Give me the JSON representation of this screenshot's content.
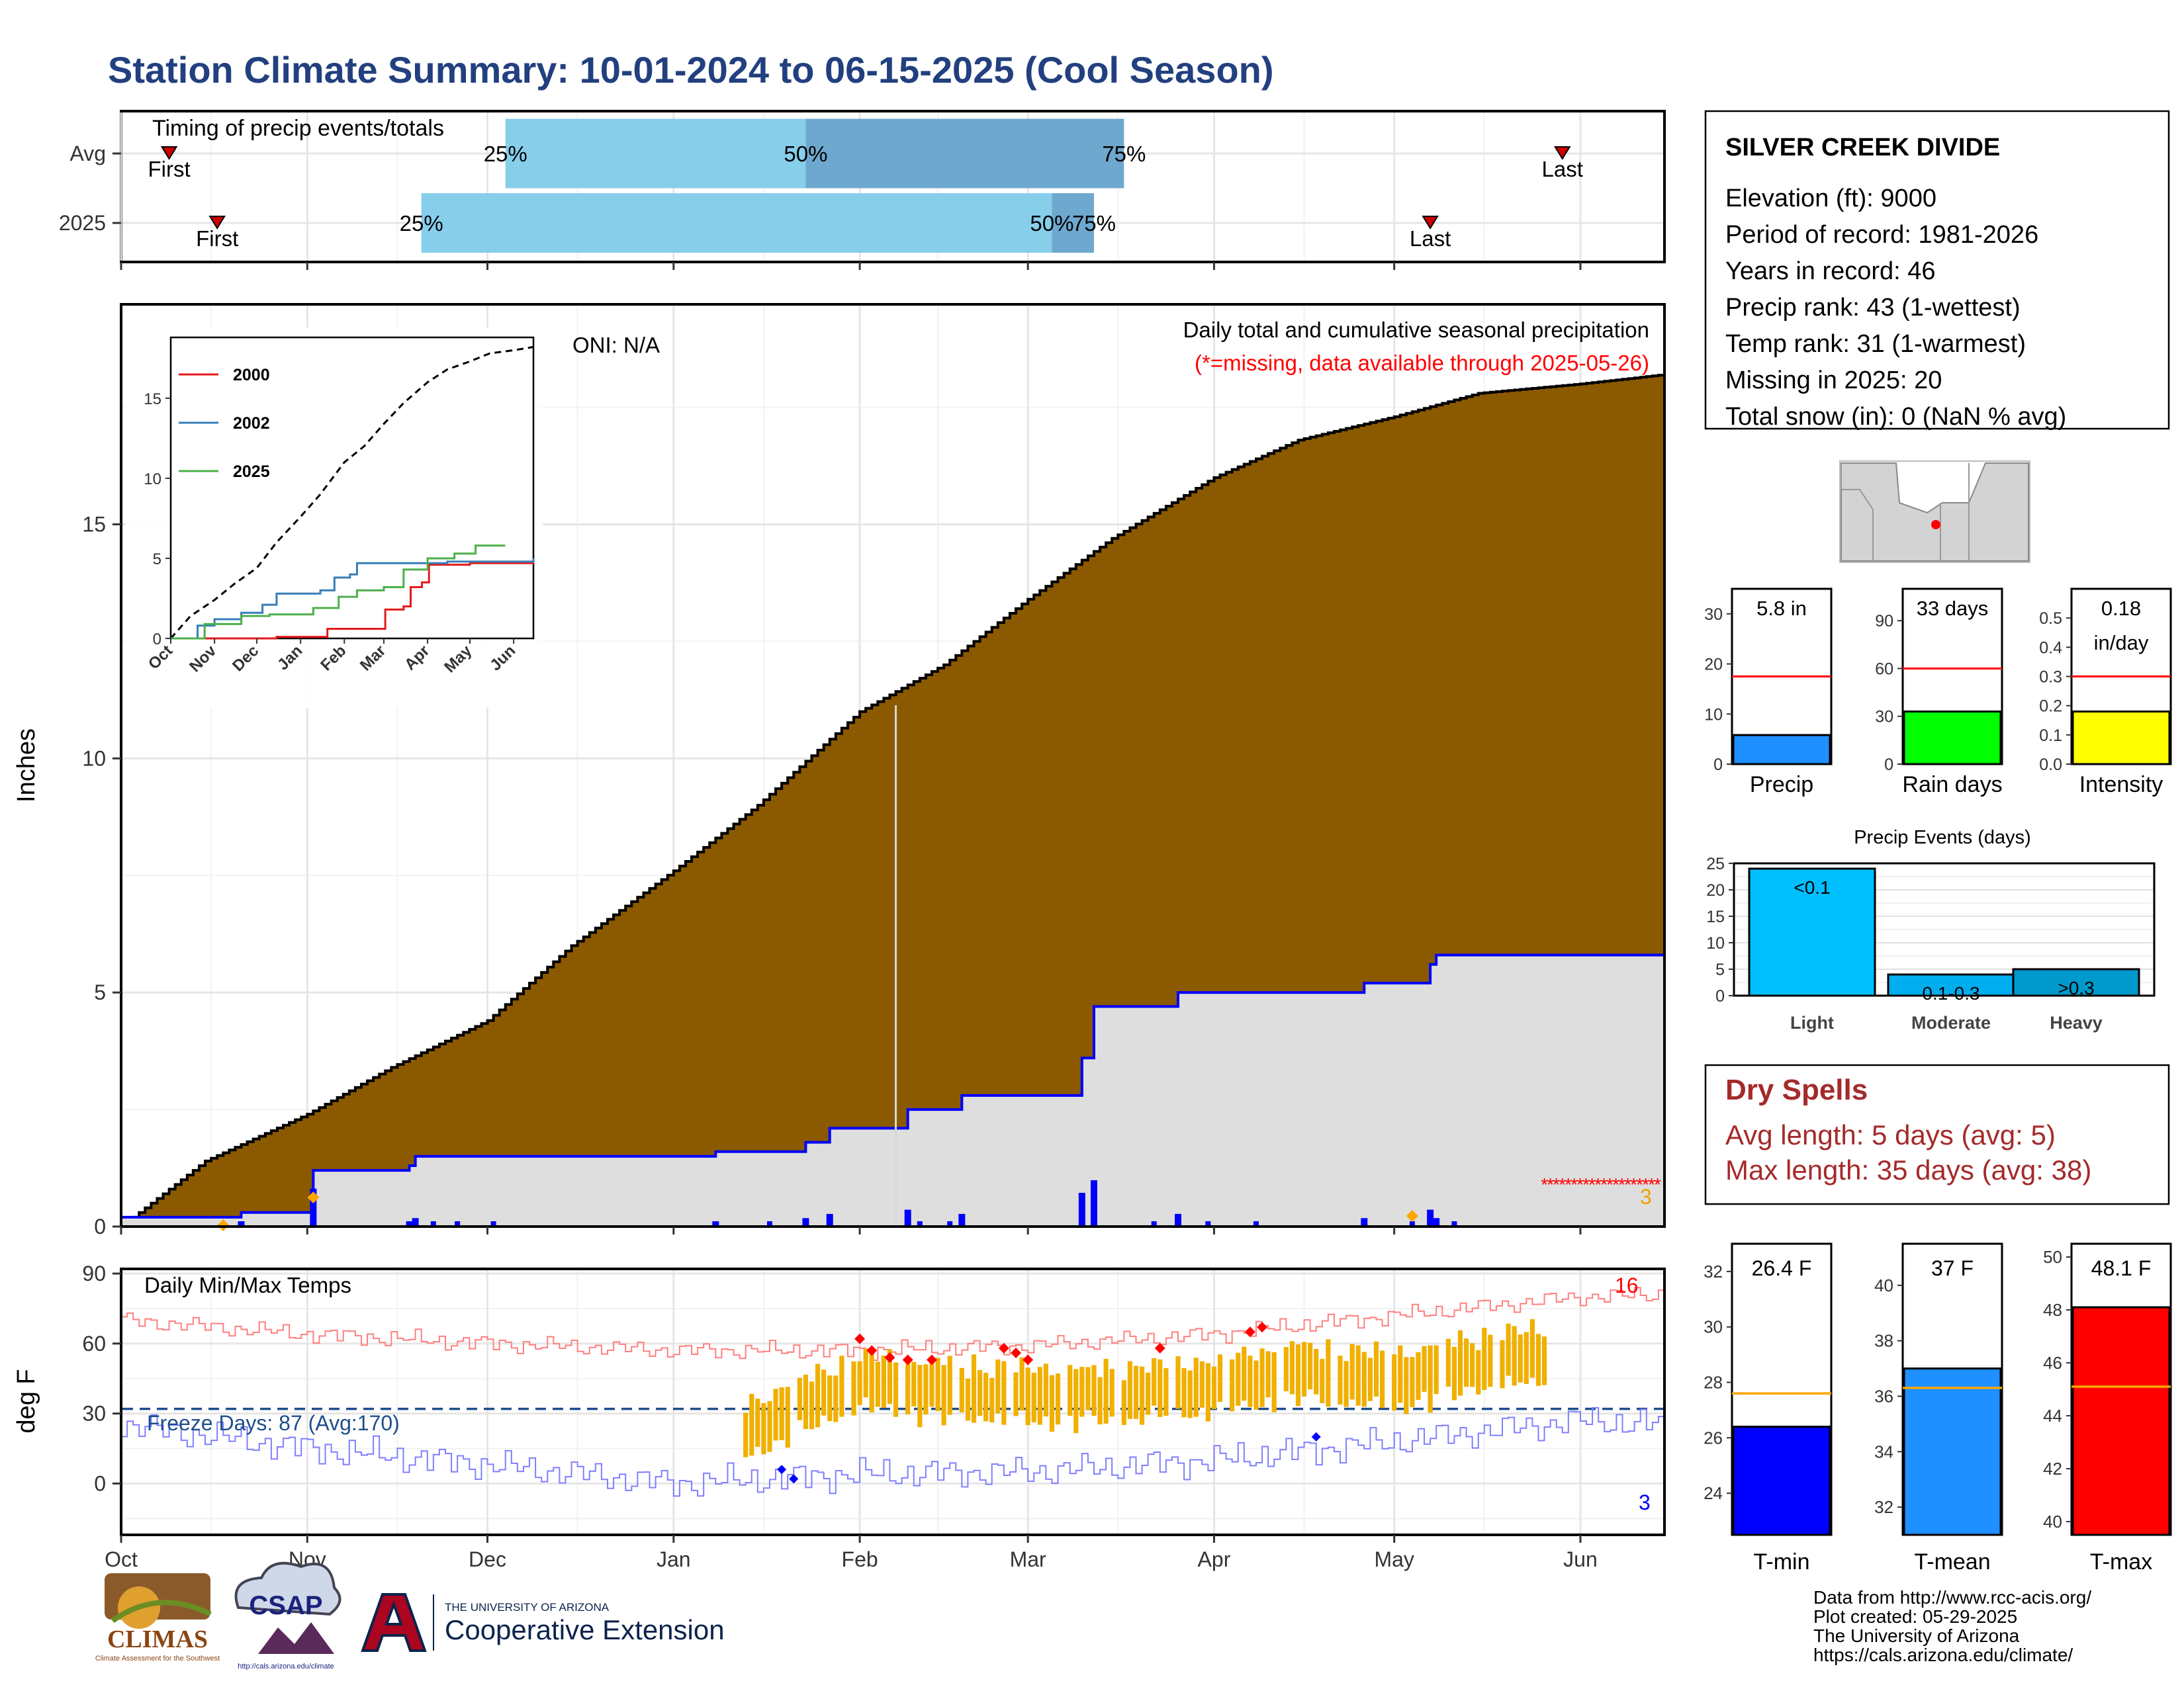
{
  "title": "Station Climate Summary: 10-01-2024 to 06-15-2025 (Cool Season)",
  "colors": {
    "title": "#22407f",
    "cum_avg_fill": "#8b5a00",
    "cum_2025_fill": "#dedede",
    "cum_2025_line": "#0000ff",
    "daily_bar": "#0000ff",
    "q_light": "#87ceeb",
    "q_dark": "#6fa8cf",
    "tmax_line": "#ff7f7f",
    "tmin_line": "#7f7fff",
    "temp_bar": "#f0b000",
    "dry_spell": "#a52a2a",
    "missing": "#ff0000",
    "freeze_line": "#1f4e8c"
  },
  "timing_panel": {
    "title": "Timing of precip events/totals",
    "rows": [
      {
        "label": "Avg",
        "first_label": "First",
        "first_date": "2024-10-09",
        "p25_label": "25%",
        "p25_date": "2024-12-04",
        "p50_label": "50%",
        "p50_date": "2025-01-23",
        "p75_label": "75%",
        "p75_date": "2025-03-17",
        "last_label": "Last",
        "last_date": "2025-05-29"
      },
      {
        "label": "2025",
        "first_label": "First",
        "first_date": "2024-10-17",
        "p25_label": "25%",
        "p25_date": "2024-11-20",
        "p50_label": "50%",
        "p50_date": "2025-03-05",
        "p75_label": "75%",
        "p75_date": "2025-03-12",
        "last_label": "Last",
        "last_date": "2025-05-07"
      }
    ]
  },
  "precip_panel": {
    "ylabel": "Inches",
    "label_right": "Daily total and cumulative seasonal precipitation",
    "missing_note": "(*=missing, data available through 2025-05-26)",
    "oni": "ONI: N/A",
    "missing_count": "3",
    "yticks": [
      "0",
      "5",
      "10",
      "15"
    ],
    "xticks": [
      "Oct",
      "Nov",
      "Dec",
      "Jan",
      "Feb",
      "Mar",
      "Apr",
      "May",
      "Jun"
    ]
  },
  "inset": {
    "yticks": [
      "0",
      "5",
      "10",
      "15"
    ],
    "xticks": [
      "Oct",
      "Nov",
      "Dec",
      "Jan",
      "Feb",
      "Mar",
      "Apr",
      "May",
      "Jun"
    ],
    "legend": [
      {
        "name": "2000",
        "color": "#e41a1c"
      },
      {
        "name": "2002",
        "color": "#377eb8"
      },
      {
        "name": "2025",
        "color": "#4daf4a"
      }
    ]
  },
  "temp_panel": {
    "ylabel": "deg F",
    "title": "Daily Min/Max Temps",
    "freeze_label": "Freeze Days: 87 (Avg:170)",
    "max_count": "16",
    "min_count": "3",
    "yticks": [
      "0",
      "30",
      "60",
      "90"
    ],
    "xticks": [
      "Oct",
      "Nov",
      "Dec",
      "Jan",
      "Feb",
      "Mar",
      "Apr",
      "May",
      "Jun"
    ]
  },
  "station": {
    "name": "SILVER CREEK DIVIDE",
    "lines": [
      "Elevation (ft): 9000",
      "Period of record: 1981-2026",
      "Years in record: 46",
      "Precip rank: 43 (1-wettest)",
      "Temp rank: 31 (1-warmest)",
      "Missing in 2025: 20",
      "Total snow (in): 0 (NaN % avg)"
    ]
  },
  "mini_bars": [
    {
      "label": "Precip",
      "value_text": "5.8 in",
      "value_text2": "",
      "value": 5.8,
      "avg": 17.5,
      "ymax": 35,
      "ticks": [
        "0",
        "10",
        "20",
        "30"
      ],
      "tickvals": [
        0,
        10,
        20,
        30
      ],
      "color": "#1e90ff"
    },
    {
      "label": "Rain days",
      "value_text": "33 days",
      "value_text2": "",
      "value": 33,
      "avg": 60,
      "ymax": 110,
      "ticks": [
        "0",
        "30",
        "60",
        "90"
      ],
      "tickvals": [
        0,
        30,
        60,
        90
      ],
      "color": "#00ff00"
    },
    {
      "label": "Intensity",
      "value_text": "0.18",
      "value_text2": "in/day",
      "value": 0.18,
      "avg": 0.3,
      "ymax": 0.6,
      "ticks": [
        "0.0",
        "0.1",
        "0.2",
        "0.3",
        "0.4",
        "0.5"
      ],
      "tickvals": [
        0,
        0.1,
        0.2,
        0.3,
        0.4,
        0.5
      ],
      "color": "#ffff00"
    }
  ],
  "events": {
    "title": "Precip Events (days)",
    "categories": [
      "Light",
      "Moderate",
      "Heavy"
    ],
    "values": [
      24,
      4,
      5
    ],
    "bar_labels": [
      "<0.1",
      "0.1-0.3",
      ">0.3"
    ],
    "colors": [
      "#00bfff",
      "#00aeef",
      "#0099cc"
    ],
    "ticks": [
      "0",
      "5",
      "10",
      "15",
      "20",
      "25"
    ]
  },
  "dry_spells": {
    "title": "Dry Spells",
    "avg_length": "Avg length: 5 days (avg: 5)",
    "max_length": "Max length: 35 days (avg: 38)"
  },
  "temp_bars": [
    {
      "label": "T-min",
      "value_text": "26.4 F",
      "value": 26.4,
      "avg": 27.6,
      "ymin": 22.5,
      "ymax": 33,
      "ticks": [
        "24",
        "26",
        "28",
        "30",
        "32"
      ],
      "tickvals": [
        24,
        26,
        28,
        30,
        32
      ],
      "color": "#0000ff"
    },
    {
      "label": "T-mean",
      "value_text": "37 F",
      "value": 37,
      "avg": 36.3,
      "ymin": 31,
      "ymax": 41.5,
      "ticks": [
        "32",
        "34",
        "36",
        "38",
        "40"
      ],
      "tickvals": [
        32,
        34,
        36,
        38,
        40
      ],
      "color": "#1e90ff"
    },
    {
      "label": "T-max",
      "value_text": "48.1 F",
      "value": 48.1,
      "avg": 45.1,
      "ymin": 39.5,
      "ymax": 50.5,
      "ticks": [
        "40",
        "42",
        "44",
        "46",
        "48",
        "50"
      ],
      "tickvals": [
        40,
        42,
        44,
        46,
        48,
        50
      ],
      "color": "#ff0000"
    }
  ],
  "footer": {
    "credits": [
      "Data from http://www.rcc-acis.org/",
      "Plot created: 05-29-2025",
      "The University of Arizona",
      "https://cals.arizona.edu/climate/"
    ],
    "logo1_text": "CLIMAS",
    "logo1_sub": "Climate Assessment for the Southwest",
    "logo2_text": "CSAP",
    "logo2_sub": "http://cals.arizona.edu/climate",
    "ua_small": "THE UNIVERSITY OF ARIZONA",
    "ua_big": "Cooperative Extension"
  },
  "chart_data": [
    {
      "type": "area",
      "title": "Daily total and cumulative seasonal precipitation",
      "ylabel": "Inches",
      "ylim": [
        0,
        19.7
      ],
      "xlim": [
        "2024-10-01",
        "2025-06-15"
      ],
      "grid": true,
      "series": [
        {
          "x": [
            "2024-10-01",
            "2024-10-15",
            "2024-11-01",
            "2024-11-15",
            "2024-12-01",
            "2024-12-15",
            "2025-01-01",
            "2025-01-15",
            "2025-02-01",
            "2025-02-15",
            "2025-03-01",
            "2025-03-15",
            "2025-04-01",
            "2025-04-15",
            "2025-05-01",
            "2025-05-15",
            "2025-06-01",
            "2025-06-15"
          ],
          "values": [
            0,
            1.4,
            2.4,
            3.4,
            4.4,
            6.0,
            7.6,
            9.0,
            11.0,
            12.0,
            13.4,
            14.7,
            16.0,
            16.8,
            17.3,
            17.8,
            18.0,
            18.2
          ]
        },
        {
          "name": "2025",
          "x": [
            "2024-10-01",
            "2024-10-20",
            "2024-10-21",
            "2024-11-01",
            "2024-11-02",
            "2024-11-18",
            "2024-11-19",
            "2025-01-01",
            "2025-01-08",
            "2025-01-23",
            "2025-01-27",
            "2025-02-09",
            "2025-02-18",
            "2025-03-05",
            "2025-03-10",
            "2025-03-12",
            "2025-03-26",
            "2025-04-26",
            "2025-05-07",
            "2025-05-08",
            "2025-06-15"
          ],
          "values": [
            0.2,
            0.2,
            0.3,
            0.3,
            1.2,
            1.3,
            1.5,
            1.5,
            1.6,
            1.8,
            2.1,
            2.5,
            2.8,
            2.8,
            3.6,
            4.7,
            5.0,
            5.2,
            5.6,
            5.8,
            5.8
          ]
        }
      ]
    },
    {
      "type": "line",
      "title": "Daily Min/Max Temps",
      "ylabel": "deg F",
      "ylim": [
        -22,
        92
      ],
      "xlim": [
        "2024-10-01",
        "2025-06-15"
      ],
      "freeze_line": 32,
      "series": [
        {
          "x": [
            "2024-10-01",
            "2024-11-01",
            "2024-12-01",
            "2025-01-01",
            "2025-02-01",
            "2025-03-01",
            "2025-04-01",
            "2025-05-01",
            "2025-06-01",
            "2025-06-15"
          ],
          "values": [
            70,
            64,
            60,
            57,
            57,
            59,
            64,
            72,
            80,
            81
          ]
        },
        {
          "x": [
            "2024-10-01",
            "2024-11-01",
            "2024-12-01",
            "2025-01-01",
            "2025-02-01",
            "2025-03-01",
            "2025-04-01",
            "2025-05-01",
            "2025-06-01",
            "2025-06-15"
          ],
          "values": [
            25,
            15,
            8,
            0,
            4,
            5,
            10,
            18,
            27,
            25
          ]
        },
        {
          "x": [
            "2025-01-15",
            "2025-02-01",
            "2025-02-15",
            "2025-03-01",
            "2025-03-15",
            "2025-04-01",
            "2025-04-15",
            "2025-05-01",
            "2025-05-15",
            "2025-05-26"
          ],
          "values": [
            25,
            44,
            40,
            38,
            38,
            42,
            48,
            44,
            52,
            55
          ]
        }
      ]
    },
    {
      "type": "bar",
      "title": "Precip Events (days)",
      "categories": [
        "Light",
        "Moderate",
        "Heavy"
      ],
      "values": [
        24,
        4,
        5
      ],
      "ylim": [
        0,
        25
      ]
    }
  ]
}
